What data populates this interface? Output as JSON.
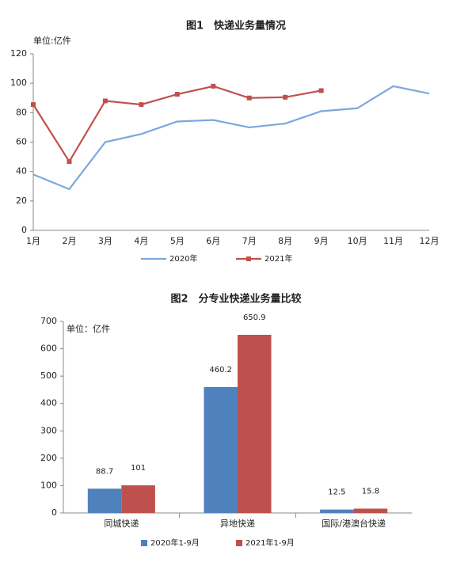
{
  "chart_data": [
    {
      "type": "line",
      "title": "图1　快递业务量情况",
      "unit_label": "单位:亿件",
      "categories": [
        "1月",
        "2月",
        "3月",
        "4月",
        "5月",
        "6月",
        "7月",
        "8月",
        "9月",
        "10月",
        "11月",
        "12月"
      ],
      "series": [
        {
          "name": "2020年",
          "color": "#7ba7de",
          "marker": "none",
          "values": [
            38,
            28,
            60,
            65.5,
            74,
            75,
            70,
            72.6,
            81,
            83,
            98,
            93
          ]
        },
        {
          "name": "2021年",
          "color": "#c0504d",
          "marker": "square",
          "values": [
            85.5,
            46.8,
            88,
            85.5,
            92.5,
            98,
            90,
            90.5,
            95,
            null,
            null,
            null
          ]
        }
      ],
      "ylim": [
        0,
        120
      ],
      "yticks": [
        0,
        20,
        40,
        60,
        80,
        100,
        120
      ],
      "grid": false,
      "legend": "bottom"
    },
    {
      "type": "bar",
      "title": "图2　分专业快递业务量比较",
      "unit_label": "单位：亿件",
      "categories": [
        "同城快递",
        "异地快递",
        "国际/港澳台快递"
      ],
      "series": [
        {
          "name": "2020年1-9月",
          "color": "#4f81bd",
          "values": [
            88.7,
            460.2,
            12.5
          ]
        },
        {
          "name": "2021年1-9月",
          "color": "#c0504d",
          "values": [
            101,
            650.9,
            15.8
          ]
        }
      ],
      "ylim": [
        0,
        700
      ],
      "yticks": [
        0,
        100,
        200,
        300,
        400,
        500,
        600,
        700
      ],
      "grid": false,
      "legend": "bottom"
    }
  ]
}
